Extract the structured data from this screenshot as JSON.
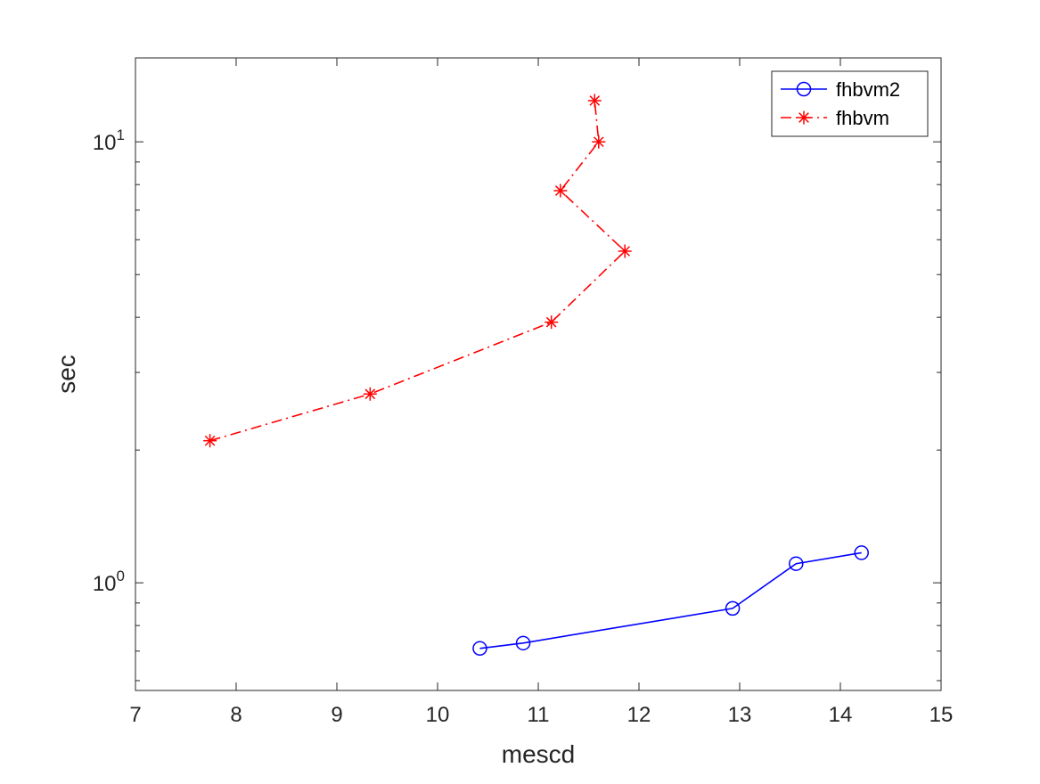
{
  "chart_data": {
    "type": "line",
    "title": "",
    "xlabel": "mescd",
    "ylabel": "sec",
    "xlim": [
      7,
      15
    ],
    "ylim": [
      0.57,
      15.5
    ],
    "yscale": "log",
    "grid": false,
    "legend_position": "top-right",
    "xticks": [
      7,
      8,
      9,
      10,
      11,
      12,
      13,
      14,
      15
    ],
    "xtick_labels": [
      "7",
      "8",
      "9",
      "10",
      "11",
      "12",
      "13",
      "14",
      "15"
    ],
    "yticks": [
      1,
      10
    ],
    "ytick_labels": [
      {
        "base": "10",
        "exp": "0"
      },
      {
        "base": "10",
        "exp": "1"
      }
    ],
    "series": [
      {
        "name": "fhbvm2",
        "color": "#0000ff",
        "line_style": "solid",
        "marker": "circle",
        "x": [
          10.42,
          10.85,
          12.93,
          13.56,
          14.21
        ],
        "y": [
          0.71,
          0.73,
          0.875,
          1.105,
          1.17
        ]
      },
      {
        "name": "fhbvm",
        "color": "#ff0000",
        "line_style": "dash-dot",
        "marker": "asterisk",
        "x": [
          7.74,
          9.33,
          11.13,
          11.86,
          11.22,
          11.6,
          11.56
        ],
        "y": [
          2.1,
          2.68,
          3.9,
          5.65,
          7.75,
          10.0,
          12.4
        ]
      }
    ]
  }
}
